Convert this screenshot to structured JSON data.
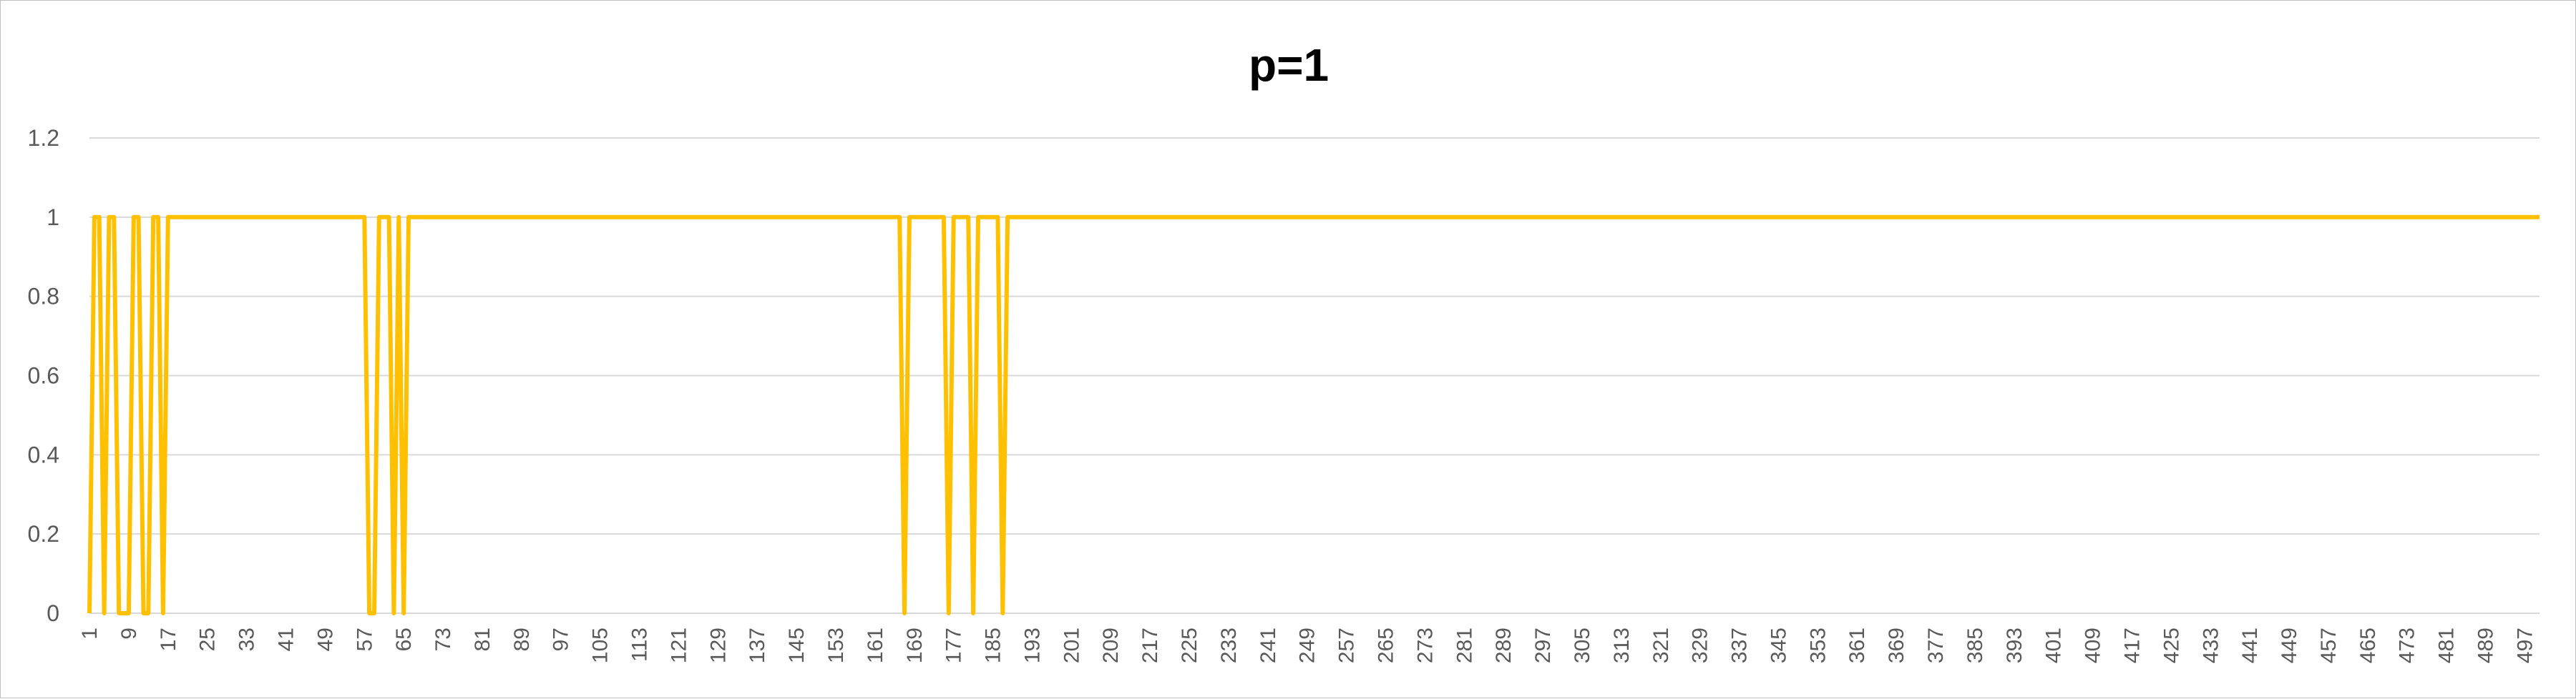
{
  "chart_data": {
    "type": "line",
    "title": "p=1",
    "xlabel": "",
    "ylabel": "",
    "ylim": [
      0,
      1.2
    ],
    "y_ticks": [
      0,
      0.2,
      0.4,
      0.6,
      0.8,
      1,
      1.2
    ],
    "y_tick_labels": [
      "0",
      "0.2",
      "0.4",
      "0.6",
      "0.8",
      "1",
      "1.2"
    ],
    "xlim": [
      1,
      500
    ],
    "x_tick_labels": [
      "1",
      "9",
      "17",
      "25",
      "33",
      "41",
      "49",
      "57",
      "65",
      "73",
      "81",
      "89",
      "97",
      "105",
      "113",
      "121",
      "129",
      "137",
      "145",
      "153",
      "161",
      "169",
      "177",
      "185",
      "193",
      "201",
      "209",
      "217",
      "225",
      "233",
      "241",
      "249",
      "257",
      "265",
      "273",
      "281",
      "289",
      "297",
      "305",
      "313",
      "321",
      "329",
      "337",
      "345",
      "353",
      "361",
      "369",
      "377",
      "385",
      "393",
      "401",
      "409",
      "417",
      "425",
      "433",
      "441",
      "449",
      "457",
      "465",
      "473",
      "481",
      "489",
      "497"
    ],
    "grid": true,
    "legend": "none",
    "series": [
      {
        "color": "#ffc000",
        "points": [
          [
            1,
            0
          ],
          [
            2,
            1
          ],
          [
            3,
            1
          ],
          [
            4,
            0
          ],
          [
            5,
            1
          ],
          [
            6,
            1
          ],
          [
            7,
            0
          ],
          [
            8,
            0
          ],
          [
            9,
            0
          ],
          [
            10,
            1
          ],
          [
            11,
            1
          ],
          [
            12,
            0
          ],
          [
            13,
            0
          ],
          [
            14,
            1
          ],
          [
            15,
            1
          ],
          [
            16,
            0
          ],
          [
            17,
            1
          ],
          [
            56,
            1
          ],
          [
            57,
            1
          ],
          [
            58,
            0
          ],
          [
            59,
            0
          ],
          [
            60,
            1
          ],
          [
            61,
            1
          ],
          [
            62,
            1
          ],
          [
            63,
            0
          ],
          [
            64,
            1
          ],
          [
            65,
            0
          ],
          [
            66,
            1
          ],
          [
            166,
            1
          ],
          [
            167,
            0
          ],
          [
            168,
            1
          ],
          [
            175,
            1
          ],
          [
            176,
            0
          ],
          [
            177,
            1
          ],
          [
            180,
            1
          ],
          [
            181,
            0
          ],
          [
            182,
            1
          ],
          [
            186,
            1
          ],
          [
            187,
            0
          ],
          [
            188,
            1
          ],
          [
            500,
            1
          ]
        ]
      }
    ]
  }
}
